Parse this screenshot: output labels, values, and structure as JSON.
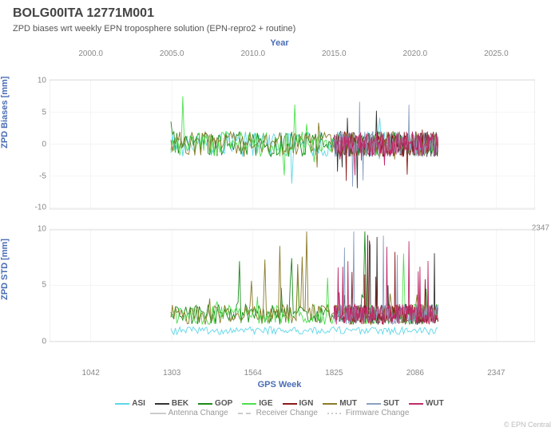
{
  "title": "BOLG00ITA 12771M001",
  "subtitle": "ZPD biases wrt weekly EPN troposphere solution (EPN-repro2 + routine)",
  "axes": {
    "top": {
      "label": "Year",
      "ticks": [
        2000.0,
        2005.0,
        2010.0,
        2015.0,
        2020.0,
        2025.0
      ],
      "positions": [
        0.085,
        0.252,
        0.419,
        0.586,
        0.753,
        0.92
      ]
    },
    "bottom": {
      "label": "GPS Week",
      "ticks": [
        1042,
        1303,
        1564,
        1825,
        2086,
        2347
      ],
      "positions": [
        0.085,
        0.252,
        0.419,
        0.586,
        0.753,
        0.92
      ]
    },
    "left_upper": {
      "label": "ZPD Biases [mm]",
      "ticks": [
        10,
        5,
        0,
        -5,
        -10
      ],
      "positions": [
        0.06,
        0.165,
        0.27,
        0.375,
        0.48
      ]
    },
    "right_upper_range": 2347,
    "left_lower": {
      "label": "ZPD STD [mm]",
      "ticks": [
        10,
        5,
        0
      ],
      "positions": [
        0.55,
        0.735,
        0.92
      ]
    }
  },
  "colors": {
    "grid": "#e6e6e6",
    "axis_line": "#cccccc",
    "text": "#555555",
    "title": "#444444",
    "accent": "#4a6db5"
  },
  "series": {
    "ASI": "#5fd7e7",
    "BEK": "#333333",
    "GOP": "#1a8a1a",
    "IGE": "#4de04d",
    "IGN": "#8b1a1a",
    "MUT": "#8a7a2a",
    "SUT": "#8aa0c0",
    "WUT": "#c02a6a"
  },
  "change_legend": {
    "Antenna Change": {
      "color": "#bbbbbb",
      "dash": "none"
    },
    "Receiver Change": {
      "color": "#bbbbbb",
      "dash": "6,4"
    },
    "Firmware Change": {
      "color": "#bbbbbb",
      "dash": "2,3"
    }
  },
  "credit": "© EPN Central"
}
